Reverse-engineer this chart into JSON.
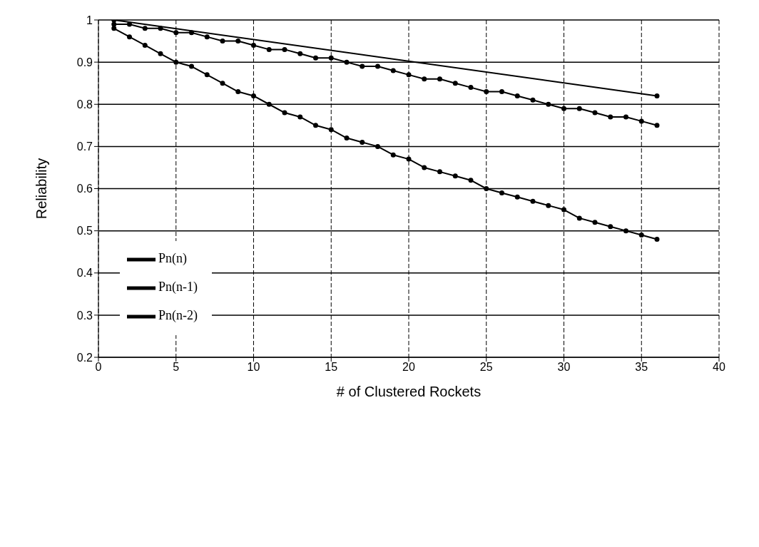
{
  "chart_data": {
    "type": "line",
    "xlabel": "# of Clustered Rockets",
    "ylabel": "Reliability",
    "xlim": [
      0,
      40
    ],
    "xticks": [
      0,
      5,
      10,
      15,
      20,
      25,
      30,
      35,
      40
    ],
    "ylim": [
      0.2,
      1
    ],
    "yticks": [
      0.2,
      0.3,
      0.4,
      0.5,
      0.6,
      0.7,
      0.8,
      0.9,
      1
    ],
    "grid": true,
    "legend": "bottom left",
    "marker": "circle",
    "line_style": "solid",
    "series": [
      {
        "name": "Pn(n)",
        "color": "#000000",
        "x": [
          1,
          2,
          3,
          4,
          5,
          6,
          7,
          8,
          9,
          10,
          11,
          12,
          13,
          14,
          15,
          16,
          17,
          18,
          19,
          20,
          21,
          22,
          23,
          24,
          25,
          26,
          27,
          28,
          29,
          30,
          31,
          32,
          33,
          34,
          35,
          36
        ],
        "values": [
          0.98,
          0.96,
          0.94,
          0.92,
          0.9,
          0.89,
          0.87,
          0.85,
          0.83,
          0.82,
          0.8,
          0.78,
          0.77,
          0.75,
          0.74,
          0.72,
          0.71,
          0.7,
          0.68,
          0.67,
          0.65,
          0.64,
          0.63,
          0.62,
          0.6,
          0.59,
          0.58,
          0.57,
          0.56,
          0.55,
          0.53,
          0.52,
          0.51,
          0.5,
          0.49,
          0.48
        ]
      },
      {
        "name": "Pn(n-1)",
        "color": "#000000",
        "x": [
          1,
          2,
          3,
          4,
          5,
          6,
          7,
          8,
          9,
          10,
          11,
          12,
          13,
          14,
          15,
          16,
          17,
          18,
          19,
          20,
          21,
          22,
          23,
          24,
          25,
          26,
          27,
          28,
          29,
          30,
          31,
          32,
          33,
          34,
          35,
          36
        ],
        "values": [
          0.99,
          0.99,
          0.98,
          0.98,
          0.97,
          0.97,
          0.96,
          0.95,
          0.95,
          0.94,
          0.93,
          0.93,
          0.92,
          0.91,
          0.91,
          0.9,
          0.89,
          0.89,
          0.88,
          0.87,
          0.86,
          0.86,
          0.85,
          0.84,
          0.83,
          0.83,
          0.82,
          0.81,
          0.8,
          0.79,
          0.79,
          0.78,
          0.77,
          0.77,
          0.76,
          0.75
        ]
      },
      {
        "name": "Pn(n-2)",
        "color": "#000000",
        "x": [
          1,
          36
        ],
        "values": [
          1.0,
          0.82
        ]
      }
    ]
  }
}
